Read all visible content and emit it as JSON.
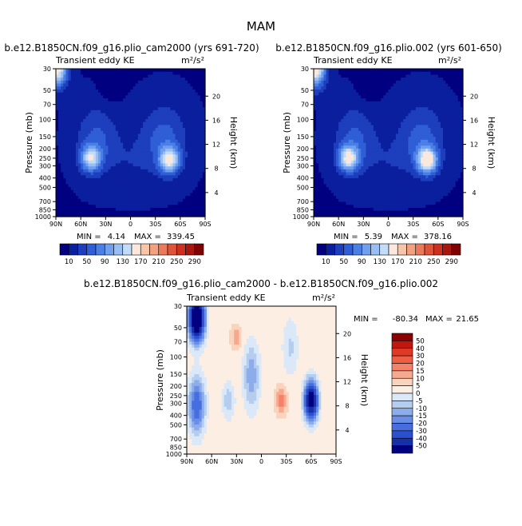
{
  "figure": {
    "title": "MAM"
  },
  "panels": [
    {
      "title": "b.e12.B1850CN.f09_g16.plio_cam2000 (yrs 691-720)",
      "left_label": "Transient eddy KE",
      "units": "m²/s²",
      "min_label": "MIN =",
      "min_value": "4.14",
      "max_label": "MAX =",
      "max_value": "339.45"
    },
    {
      "title": "b.e12.B1850CN.f09_g16.plio.002 (yrs 601-650)",
      "left_label": "Transient eddy KE",
      "units": "m²/s²",
      "min_label": "MIN =",
      "min_value": "5.39",
      "max_label": "MAX =",
      "max_value": "378.16"
    },
    {
      "title": "b.e12.B1850CN.f09_g16.plio_cam2000 - b.e12.B1850CN.f09_g16.plio.002",
      "left_label": "Transient eddy KE",
      "units": "m²/s²",
      "min_label": "MIN =",
      "min_value": "-80.34",
      "max_label": "MAX =",
      "max_value": "21.65"
    }
  ],
  "chart_data": [
    {
      "type": "heatmap",
      "title": "b.e12.B1850CN.f09_g16.plio_cam2000 (yrs 691-720)",
      "ylabel": "Pressure (mb)",
      "y2label": "Height (km)",
      "x_ticks": [
        "90N",
        "60N",
        "30N",
        "0",
        "30S",
        "60S",
        "90S"
      ],
      "x_values": [
        90,
        60,
        30,
        0,
        -30,
        -60,
        -90
      ],
      "y_ticks": [
        "30",
        "50",
        "70",
        "100",
        "150",
        "200",
        "250",
        "300",
        "400",
        "500",
        "700",
        "850",
        "1000"
      ],
      "y_values": [
        30,
        50,
        70,
        100,
        150,
        200,
        250,
        300,
        400,
        500,
        700,
        850,
        1000
      ],
      "y_scale": "log",
      "y2_ticks": [
        "4",
        "8",
        "12",
        "16",
        "20"
      ],
      "colorbar_levels": [
        10,
        50,
        90,
        130,
        170,
        210,
        250,
        290
      ],
      "colors": [
        "#000080",
        "#0a1f9e",
        "#1d3ebd",
        "#2f5ed6",
        "#4a80e6",
        "#709fef",
        "#98bff5",
        "#c3dcf9",
        "#fbe8dc",
        "#f7c6a8",
        "#f2a07f",
        "#ea7a5a",
        "#df5338",
        "#cc301e",
        "#a8160e",
        "#800000"
      ],
      "min": 4.14,
      "max": 339.45
    },
    {
      "type": "heatmap",
      "title": "b.e12.B1850CN.f09_g16.plio.002 (yrs 601-650)",
      "ylabel": "Pressure (mb)",
      "y2label": "Height (km)",
      "x_ticks": [
        "90N",
        "60N",
        "30N",
        "0",
        "30S",
        "60S",
        "90S"
      ],
      "x_values": [
        90,
        60,
        30,
        0,
        -30,
        -60,
        -90
      ],
      "y_ticks": [
        "30",
        "50",
        "70",
        "100",
        "150",
        "200",
        "250",
        "300",
        "400",
        "500",
        "700",
        "850",
        "1000"
      ],
      "y_values": [
        30,
        50,
        70,
        100,
        150,
        200,
        250,
        300,
        400,
        500,
        700,
        850,
        1000
      ],
      "y_scale": "log",
      "y2_ticks": [
        "4",
        "8",
        "12",
        "16",
        "20"
      ],
      "colorbar_levels": [
        10,
        50,
        90,
        130,
        170,
        210,
        250,
        290
      ],
      "colors": [
        "#000080",
        "#0a1f9e",
        "#1d3ebd",
        "#2f5ed6",
        "#4a80e6",
        "#709fef",
        "#98bff5",
        "#c3dcf9",
        "#fbe8dc",
        "#f7c6a8",
        "#f2a07f",
        "#ea7a5a",
        "#df5338",
        "#cc301e",
        "#a8160e",
        "#800000"
      ],
      "min": 5.39,
      "max": 378.16
    },
    {
      "type": "heatmap",
      "title": "b.e12.B1850CN.f09_g16.plio_cam2000 - b.e12.B1850CN.f09_g16.plio.002",
      "ylabel": "Pressure (mb)",
      "y2label": "Height (km)",
      "x_ticks": [
        "90N",
        "60N",
        "30N",
        "0",
        "30S",
        "60S",
        "90S"
      ],
      "x_values": [
        90,
        60,
        30,
        0,
        -30,
        -60,
        -90
      ],
      "y_ticks": [
        "30",
        "50",
        "70",
        "100",
        "150",
        "200",
        "250",
        "300",
        "400",
        "500",
        "700",
        "850",
        "1000"
      ],
      "y_values": [
        30,
        50,
        70,
        100,
        150,
        200,
        250,
        300,
        400,
        500,
        700,
        850,
        1000
      ],
      "y_scale": "log",
      "y2_ticks": [
        "4",
        "8",
        "12",
        "16",
        "20"
      ],
      "colorbar_levels": [
        50,
        40,
        30,
        20,
        15,
        10,
        5,
        0,
        -5,
        -10,
        -15,
        -20,
        -30,
        -40,
        -50
      ],
      "colors": [
        "#8b0000",
        "#c0180e",
        "#e03a26",
        "#ef5d45",
        "#f4826a",
        "#f7a98e",
        "#fad3bd",
        "#fdeee3",
        "#dbe8f7",
        "#b5cdef",
        "#8dadea",
        "#6a8ee5",
        "#466ee0",
        "#2b4fcf",
        "#1730a8",
        "#000080"
      ],
      "min": -80.34,
      "max": 21.65
    }
  ]
}
